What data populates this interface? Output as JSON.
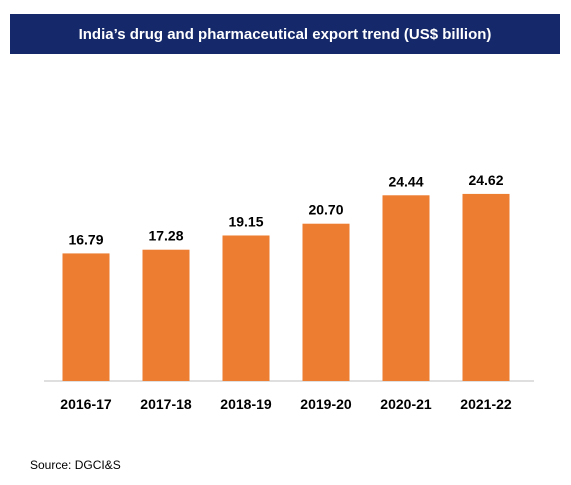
{
  "colors": {
    "title_bg": "#14286a",
    "bar": "#ed7d31",
    "axis": "#bfbfbf"
  },
  "source": "Source: DGCI&S",
  "chart_data": {
    "type": "bar",
    "title": "India’s drug and pharmaceutical export trend (US$ billion)",
    "categories": [
      "2016-17",
      "2017-18",
      "2018-19",
      "2019-20",
      "2020-21",
      "2021-22"
    ],
    "series": [
      {
        "values": [
          16.79,
          17.28,
          19.15,
          20.7,
          24.44,
          24.62
        ],
        "labels": [
          "16.79",
          "17.28",
          "19.15",
          "20.70",
          "24.44",
          "24.62"
        ]
      }
    ],
    "ylim": [
      0,
      30
    ],
    "grid": false,
    "legend": "none"
  }
}
